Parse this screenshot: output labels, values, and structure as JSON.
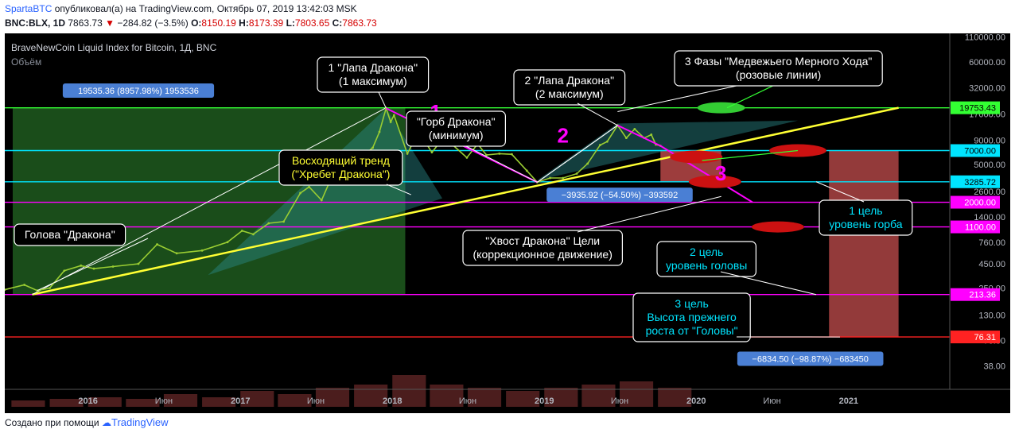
{
  "header": {
    "author": "SpartaBTC",
    "published_text": "опубликовал(а) на TradingView.com, Октябрь 07, 2019 13:42:03 MSK",
    "symbol": "BNC:BLX, 1D",
    "last": "7863.73",
    "change_arrow": "▼",
    "change": "−284.82 (−3.5%)",
    "o_label": "O:",
    "o": "8150.19",
    "h_label": "H:",
    "h": "8173.39",
    "l_label": "L:",
    "l": "7803.65",
    "c_label": "C:",
    "c": "7863.73"
  },
  "chart": {
    "title": "BraveNewCoin Liquid Index for Bitcoin, 1Д, BNC",
    "volume_label": "Объём"
  },
  "colors": {
    "background": "#000000",
    "candles": "#9acd32",
    "trend_yellow": "#ffff33",
    "pink": "#ff00ff",
    "cyan": "#00e5ff",
    "green_level": "#33ff33",
    "red_level": "#ff2222",
    "green_zone": "#1e5a1e",
    "projection_zone": "#b84848"
  },
  "chart_data": {
    "type": "line",
    "scale": "log",
    "ylim": [
      25,
      120000
    ],
    "x_range": [
      "2015-06-15",
      "2021-09-01"
    ],
    "x_ticks": [
      {
        "date": "2016-01-01",
        "label": "2016"
      },
      {
        "date": "2016-07-01",
        "label": "Июн"
      },
      {
        "date": "2017-01-01",
        "label": "2017"
      },
      {
        "date": "2017-07-01",
        "label": "Июн"
      },
      {
        "date": "2018-01-01",
        "label": "2018"
      },
      {
        "date": "2018-07-01",
        "label": "Июн"
      },
      {
        "date": "2019-01-01",
        "label": "2019"
      },
      {
        "date": "2019-07-01",
        "label": "Июн"
      },
      {
        "date": "2020-01-01",
        "label": "2020"
      },
      {
        "date": "2020-07-01",
        "label": "Июн"
      },
      {
        "date": "2021-01-01",
        "label": "2021"
      }
    ],
    "y_ticks": [
      110000,
      60000,
      32000,
      17000,
      9000,
      5000,
      2600,
      1400,
      760,
      450,
      250,
      130,
      70,
      38
    ],
    "y_tick_labels": [
      "110000.00",
      "60000.00",
      "32000.00",
      "17000.00",
      "9000.00",
      "5000.00",
      "2600.00",
      "1400.00",
      "760.00",
      "450.00",
      "250.00",
      "130.00",
      "70.00",
      "38.00"
    ],
    "series": [
      {
        "values": [
          [
            "2015-06-15",
            240
          ],
          [
            "2015-08-01",
            270
          ],
          [
            "2015-09-01",
            235
          ],
          [
            "2015-10-01",
            250
          ],
          [
            "2015-11-05",
            380
          ],
          [
            "2015-12-15",
            430
          ],
          [
            "2016-01-15",
            400
          ],
          [
            "2016-03-01",
            420
          ],
          [
            "2016-05-01",
            450
          ],
          [
            "2016-06-15",
            720
          ],
          [
            "2016-08-01",
            580
          ],
          [
            "2016-10-01",
            620
          ],
          [
            "2016-12-01",
            760
          ],
          [
            "2017-01-05",
            1000
          ],
          [
            "2017-02-01",
            920
          ],
          [
            "2017-03-10",
            1200
          ],
          [
            "2017-04-15",
            1250
          ],
          [
            "2017-05-25",
            2500
          ],
          [
            "2017-06-15",
            2900
          ],
          [
            "2017-07-15",
            2100
          ],
          [
            "2017-08-15",
            4300
          ],
          [
            "2017-09-01",
            4800
          ],
          [
            "2017-09-15",
            3400
          ],
          [
            "2017-10-20",
            6000
          ],
          [
            "2017-11-15",
            7500
          ],
          [
            "2017-12-01",
            11000
          ],
          [
            "2017-12-17",
            19535
          ],
          [
            "2017-12-28",
            14000
          ],
          [
            "2018-01-05",
            16500
          ],
          [
            "2018-02-06",
            6500
          ],
          [
            "2018-03-05",
            11000
          ],
          [
            "2018-04-06",
            6700
          ],
          [
            "2018-05-05",
            9700
          ],
          [
            "2018-06-29",
            5900
          ],
          [
            "2018-07-25",
            8200
          ],
          [
            "2018-08-15",
            6300
          ],
          [
            "2018-09-15",
            6500
          ],
          [
            "2018-10-15",
            6400
          ],
          [
            "2018-11-20",
            4300
          ],
          [
            "2018-12-15",
            3250
          ],
          [
            "2019-01-15",
            3600
          ],
          [
            "2019-02-15",
            3600
          ],
          [
            "2019-03-20",
            4000
          ],
          [
            "2019-04-15",
            5100
          ],
          [
            "2019-05-15",
            8000
          ],
          [
            "2019-06-01",
            8700
          ],
          [
            "2019-06-26",
            12900
          ],
          [
            "2019-07-17",
            9500
          ],
          [
            "2019-08-06",
            11800
          ],
          [
            "2019-08-29",
            9500
          ],
          [
            "2019-09-15",
            10300
          ],
          [
            "2019-09-26",
            8100
          ],
          [
            "2019-10-07",
            7863
          ]
        ]
      }
    ],
    "volume_label": "Объём",
    "volume_values": [
      [
        "2015-07",
        2
      ],
      [
        "2015-10",
        2.5
      ],
      [
        "2016-01",
        3
      ],
      [
        "2016-04",
        2.5
      ],
      [
        "2016-07",
        4
      ],
      [
        "2016-10",
        3
      ],
      [
        "2017-01",
        5
      ],
      [
        "2017-04",
        4
      ],
      [
        "2017-07",
        6
      ],
      [
        "2017-10",
        7
      ],
      [
        "2018-01",
        10
      ],
      [
        "2018-04",
        7
      ],
      [
        "2018-07",
        6
      ],
      [
        "2018-10",
        5
      ],
      [
        "2019-01",
        6
      ],
      [
        "2019-04",
        7
      ],
      [
        "2019-07",
        8
      ],
      [
        "2019-10",
        6
      ]
    ],
    "levels": [
      {
        "value": 19753.43,
        "label": "19753.43",
        "color": "#33ff33"
      },
      {
        "value": 7000.0,
        "label": "7000.00",
        "color": "#00e5ff"
      },
      {
        "value": 3285.72,
        "label": "3285.72",
        "color": "#00e5ff"
      },
      {
        "value": 2000.0,
        "label": "2000.00",
        "color": "#ff00ff"
      },
      {
        "value": 1100.0,
        "label": "1100.00",
        "color": "#ff00ff"
      },
      {
        "value": 213.36,
        "label": "213.36",
        "color": "#ff00ff"
      },
      {
        "value": 76.31,
        "label": "76.31",
        "color": "#ff2222"
      }
    ],
    "last_price": {
      "value": 7863.73
    },
    "measurements": [
      {
        "text": "19535.36 (8957.98%) 1953536"
      },
      {
        "text": "−3935.92 (−54.50%) −393592"
      },
      {
        "text": "−6834.50 (−98.87%) −683450"
      }
    ],
    "annotations": [
      {
        "id": "head",
        "lines": [
          "Голова \"Дракона\""
        ],
        "color": "#ffffff"
      },
      {
        "id": "paw1",
        "lines": [
          "1 \"Лапа Дракона\"",
          "(1 максимум)"
        ],
        "color": "#ffffff"
      },
      {
        "id": "trend",
        "lines": [
          "Восходящий тренд",
          "(\"Хребет Дракона\")"
        ],
        "color": "#ffff33"
      },
      {
        "id": "hump",
        "lines": [
          "\"Горб Дракона\"",
          "(минимум)"
        ],
        "color": "#ffffff"
      },
      {
        "id": "paw2",
        "lines": [
          "2 \"Лапа Дракона\"",
          "(2 максимум)"
        ],
        "color": "#ffffff"
      },
      {
        "id": "bear",
        "lines": [
          "3 Фазы \"Медвежьего Мерного Хода\"",
          "(розовые линии)"
        ],
        "color": "#ffffff"
      },
      {
        "id": "tail",
        "lines": [
          "\"Хвост Дракона\" Цели",
          "(коррекционное движение)"
        ],
        "color": "#ffffff"
      },
      {
        "id": "t1",
        "lines": [
          "1 цель",
          "уровень горба"
        ],
        "color": "#00e5ff"
      },
      {
        "id": "t2",
        "lines": [
          "2 цель",
          "уровень головы"
        ],
        "color": "#00e5ff"
      },
      {
        "id": "t3",
        "lines": [
          "3 цель",
          "Высота прежнего",
          "роста от \"Головы\""
        ],
        "color": "#00e5ff"
      }
    ],
    "phase_numbers": [
      "1",
      "2",
      "3"
    ]
  },
  "footer": {
    "created_with": "Создано при помощи",
    "brand": "TradingView"
  }
}
